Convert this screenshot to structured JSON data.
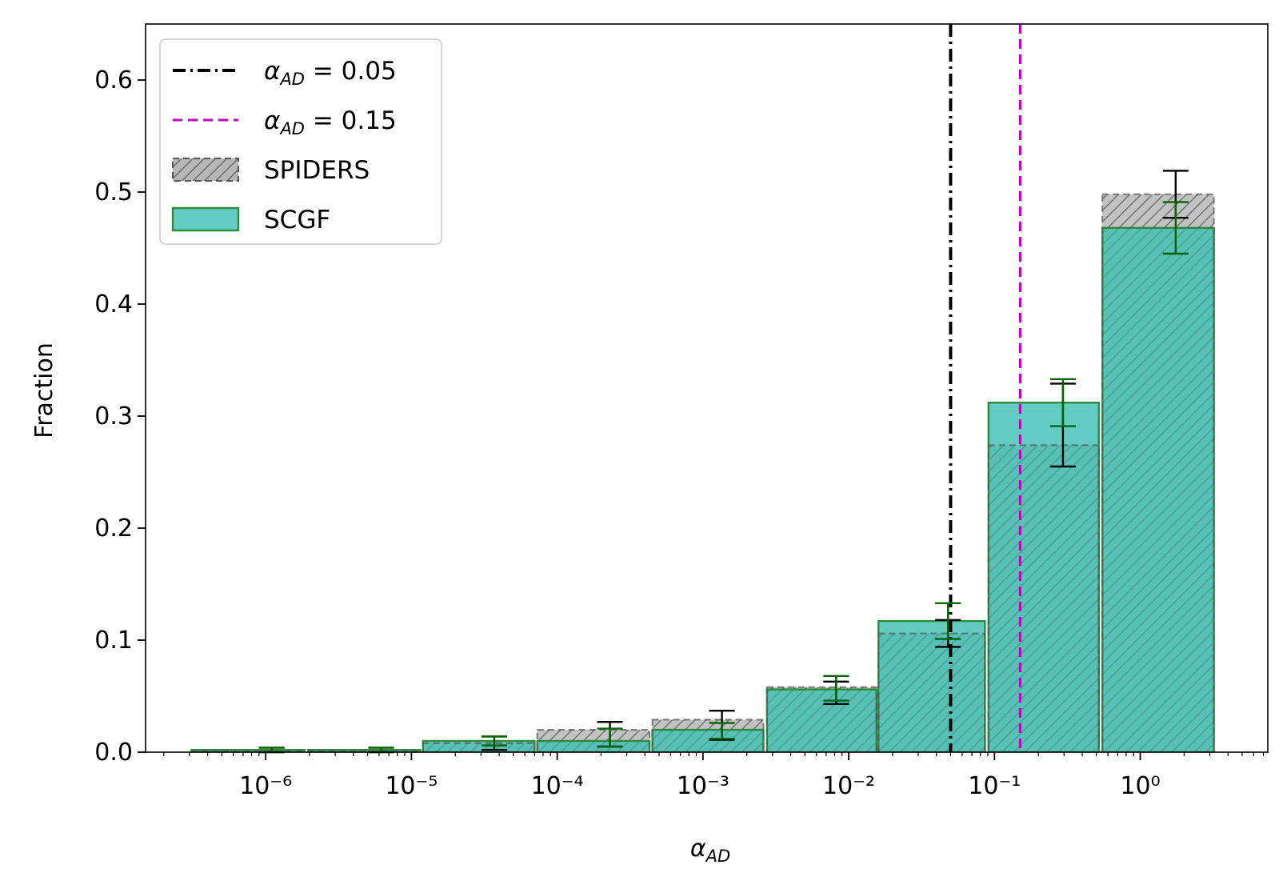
{
  "chart_data": {
    "type": "bar",
    "xscale": "log",
    "xlabel": "α_AD",
    "ylabel": "Fraction",
    "xlim": [
      1.5e-07,
      7.5
    ],
    "ylim": [
      0,
      0.65
    ],
    "x_ticks": [
      {
        "value": 1e-06,
        "label": "10⁻⁶"
      },
      {
        "value": 1e-05,
        "label": "10⁻⁵"
      },
      {
        "value": 0.0001,
        "label": "10⁻⁴"
      },
      {
        "value": 0.001,
        "label": "10⁻³"
      },
      {
        "value": 0.01,
        "label": "10⁻²"
      },
      {
        "value": 0.1,
        "label": "10⁻¹"
      },
      {
        "value": 1,
        "label": "10⁰"
      }
    ],
    "y_ticks": [
      {
        "value": 0.0,
        "label": "0.0"
      },
      {
        "value": 0.1,
        "label": "0.1"
      },
      {
        "value": 0.2,
        "label": "0.2"
      },
      {
        "value": 0.3,
        "label": "0.3"
      },
      {
        "value": 0.4,
        "label": "0.4"
      },
      {
        "value": 0.5,
        "label": "0.5"
      },
      {
        "value": 0.6,
        "label": "0.6"
      }
    ],
    "bins": [
      [
        3.1e-07,
        1.85e-06
      ],
      [
        1.95e-06,
        1.15e-05
      ],
      [
        1.2e-05,
        7e-05
      ],
      [
        7.3e-05,
        0.00043
      ],
      [
        0.00045,
        0.0026
      ],
      [
        0.00275,
        0.0155
      ],
      [
        0.016,
        0.086
      ],
      [
        0.091,
        0.52
      ],
      [
        0.55,
        3.2
      ]
    ],
    "errorbar_x": [
      1.1e-06,
      6.2e-06,
      3.7e-05,
      0.00023,
      0.00135,
      0.0082,
      0.048,
      0.295,
      1.75
    ],
    "series": [
      {
        "name": "SPIDERS",
        "values": [
          0.001,
          0.001,
          0.008,
          0.02,
          0.029,
          0.058,
          0.106,
          0.274,
          0.498
        ],
        "errorbar_center": [
          0.002,
          0.002,
          0.008,
          0.016,
          0.024,
          0.053,
          0.106,
          0.292,
          0.498
        ],
        "errors": [
          0.002,
          0.002,
          0.006,
          0.011,
          0.013,
          0.01,
          0.012,
          0.037,
          0.021
        ],
        "fill_color": "#b7b7b7",
        "edge_color": "#555555",
        "errorbar_color": "#000000"
      },
      {
        "name": "SCGF",
        "values": [
          0.002,
          0.002,
          0.01,
          0.01,
          0.02,
          0.056,
          0.117,
          0.312,
          0.468
        ],
        "errorbar_center": [
          0.002,
          0.002,
          0.01,
          0.013,
          0.019,
          0.057,
          0.117,
          0.312,
          0.468
        ],
        "errors": [
          0.002,
          0.002,
          0.004,
          0.008,
          0.007,
          0.011,
          0.016,
          0.021,
          0.023
        ],
        "fill_color": "#40c0b4",
        "edge_color": "#2e8b3e",
        "errorbar_color": "#006400"
      }
    ],
    "vlines": [
      {
        "x": 0.05,
        "label": "α_AD = 0.05",
        "color": "#000000",
        "style": "dashdot"
      },
      {
        "x": 0.15,
        "label": "α_AD = 0.15",
        "color": "#bf00bf",
        "style": "dashed"
      }
    ],
    "legend": {
      "location": "top-left",
      "entries": [
        {
          "label": "α_AD = 0.05",
          "kind": "line",
          "color": "#000000",
          "style": "dashdot"
        },
        {
          "label": "α_AD = 0.15",
          "kind": "line",
          "color": "#bf00bf",
          "style": "dashed"
        },
        {
          "label": "SPIDERS",
          "kind": "patch-hatched",
          "color": "#b7b7b7",
          "edge": "#555555"
        },
        {
          "label": "SCGF",
          "kind": "patch",
          "color": "#40c0b4",
          "edge": "#2e8b3e"
        }
      ]
    },
    "grid": false
  }
}
